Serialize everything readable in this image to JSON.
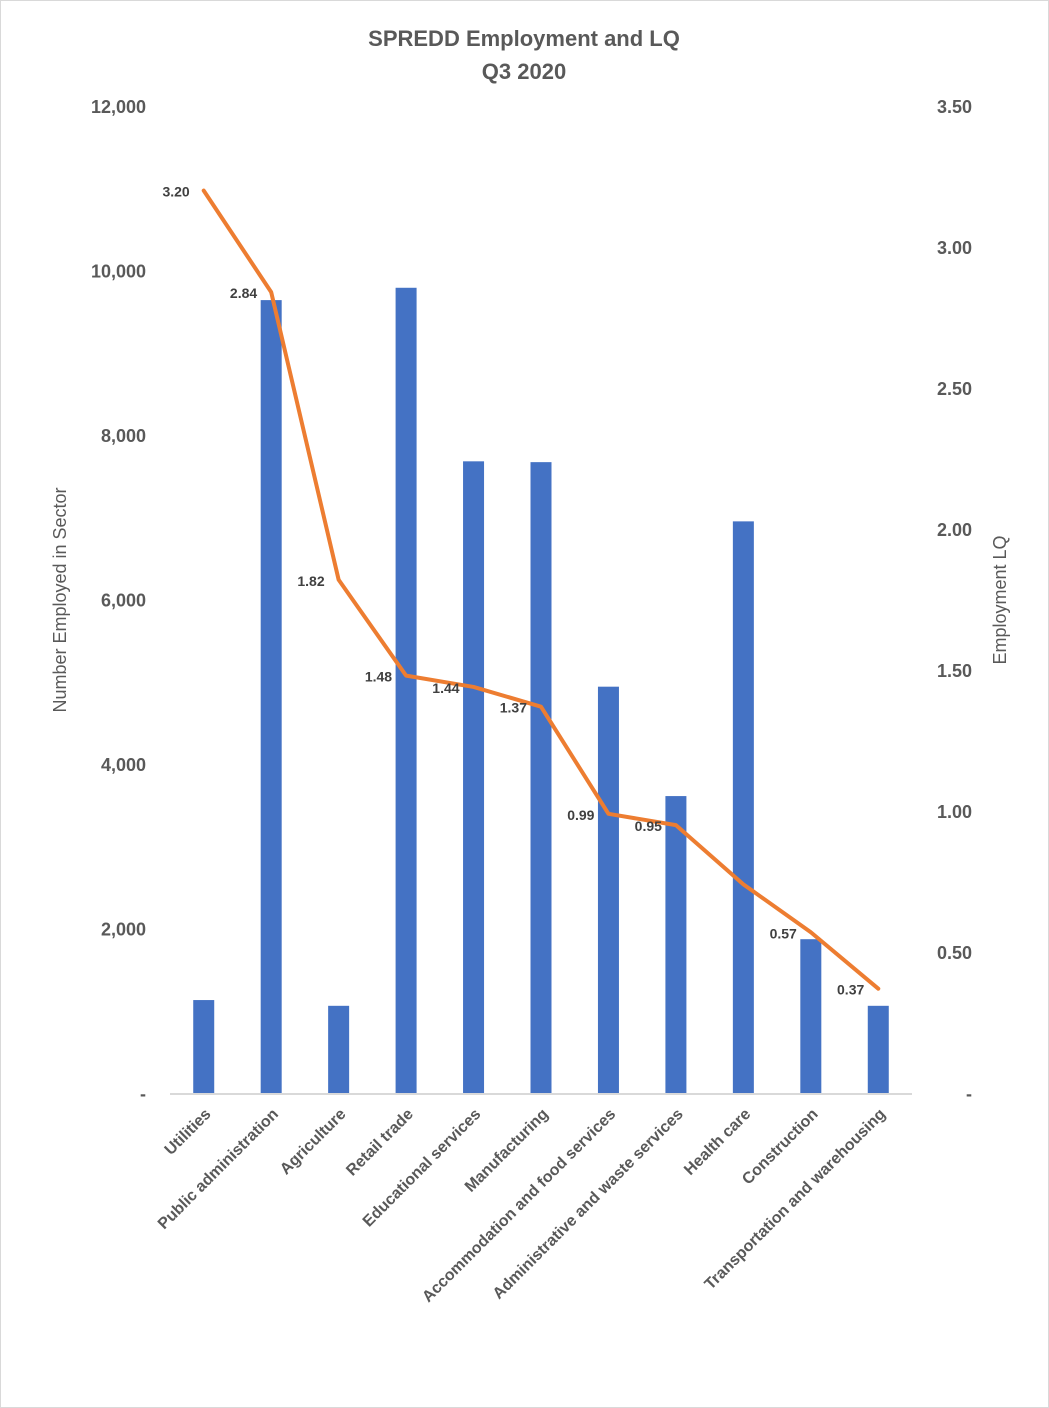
{
  "chart_data": {
    "type": "bar",
    "combo": "bar + line (secondary axis)",
    "title": "SPREDD Employment and LQ",
    "subtitle": "Q3 2020",
    "xlabel": "",
    "ylabel": "Number Employed in Sector",
    "y2label": "Employment LQ",
    "ylim": [
      0,
      12000
    ],
    "y2lim": [
      0,
      3.5
    ],
    "yticks": [
      "-",
      "2,000",
      "4,000",
      "6,000",
      "8,000",
      "10,000",
      "12,000"
    ],
    "yticks_values": [
      0,
      2000,
      4000,
      6000,
      8000,
      10000,
      12000
    ],
    "y2ticks": [
      "-",
      "0.50",
      "1.00",
      "1.50",
      "2.00",
      "2.50",
      "3.00",
      "3.50"
    ],
    "y2ticks_values": [
      0,
      0.5,
      1.0,
      1.5,
      2.0,
      2.5,
      3.0,
      3.5
    ],
    "grid": false,
    "legend": "none",
    "categories": [
      "Utilities",
      "Public administration",
      "Agriculture",
      "Retail trade",
      "Educational services",
      "Manufacturing",
      "Accommodation and food services",
      "Administrative and waste services",
      "Health care",
      "Construction",
      "Transportation and warehousing"
    ],
    "series": [
      {
        "name": "Number Employed in Sector",
        "type": "bar",
        "axis": "left",
        "color": "#4472C4",
        "values": [
          1130,
          9640,
          1060,
          9790,
          7680,
          7670,
          4940,
          3610,
          6950,
          1870,
          1060
        ]
      },
      {
        "name": "Employment LQ",
        "type": "line",
        "axis": "right",
        "color": "#ED7D31",
        "values": [
          3.2,
          2.84,
          1.82,
          1.48,
          1.44,
          1.37,
          0.99,
          0.95,
          0.74,
          0.57,
          0.37
        ],
        "data_labels": [
          "3.20",
          "2.84",
          "1.82",
          "1.48",
          "1.44",
          "1.37",
          "0.99",
          "0.95",
          "",
          "0.57",
          "0.37"
        ]
      }
    ]
  }
}
